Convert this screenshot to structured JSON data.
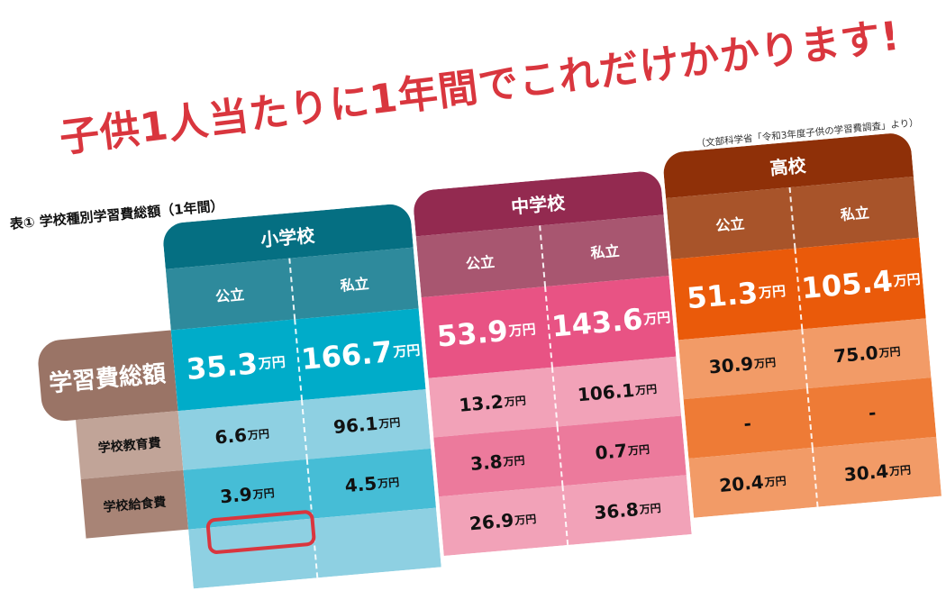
{
  "headline": "子供1人当たりに1年間でこれだけかかります!",
  "source": "（文部科学省「令和3年度子供の学習費調査」より）",
  "table_caption": "表① 学校種別学習費総額（1年間）",
  "unit": "万円",
  "row_labels": {
    "total": "学習費総額",
    "school_education": "学校教育費",
    "school_lunch": "学校給食費"
  },
  "schools": [
    {
      "name": "小学校",
      "colors": {
        "title": "#056f82",
        "subhead": "#2e8a9c",
        "total": "#00acc9",
        "sub_a": "#8ed0e2",
        "sub_b": "#46bdd6"
      },
      "columns": [
        {
          "type": "公立",
          "total": "35.3",
          "school_education": "6.6",
          "school_lunch": "3.9",
          "next": ""
        },
        {
          "type": "私立",
          "total": "166.7",
          "school_education": "96.1",
          "school_lunch": "4.5",
          "next": ""
        }
      ]
    },
    {
      "name": "中学校",
      "colors": {
        "title": "#932a50",
        "subhead": "#a85670",
        "total": "#e85384",
        "sub_a": "#f2a2b8",
        "sub_b": "#ec7a9c"
      },
      "columns": [
        {
          "type": "公立",
          "total": "53.9",
          "school_education": "13.2",
          "school_lunch": "3.8",
          "next": "26.9"
        },
        {
          "type": "私立",
          "total": "143.6",
          "school_education": "106.1",
          "school_lunch": "0.7",
          "next": "36.8"
        }
      ]
    },
    {
      "name": "高校",
      "colors": {
        "title": "#8f3008",
        "subhead": "#a8542a",
        "total": "#ea5a0a",
        "sub_a": "#f29b67",
        "sub_b": "#ee7b36"
      },
      "columns": [
        {
          "type": "公立",
          "total": "51.3",
          "school_education": "30.9",
          "school_lunch": "-",
          "next": "20.4"
        },
        {
          "type": "私立",
          "total": "105.4",
          "school_education": "75.0",
          "school_lunch": "-",
          "next": "30.4"
        }
      ]
    }
  ]
}
